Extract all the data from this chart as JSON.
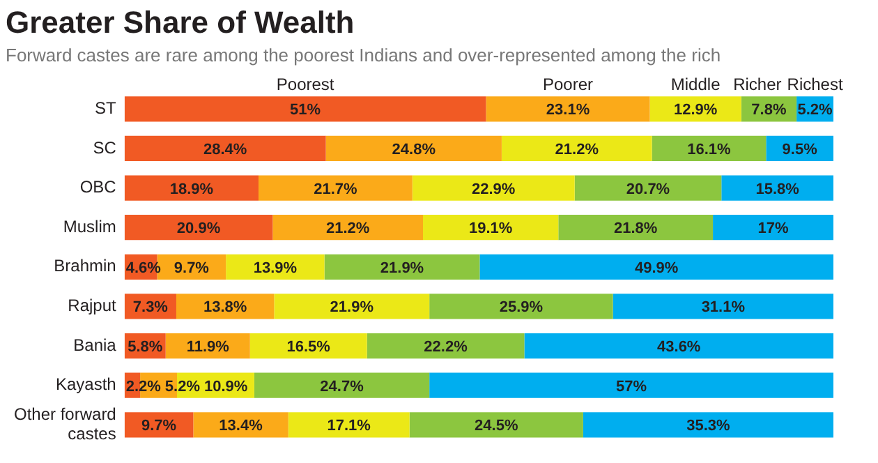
{
  "chart_data": {
    "type": "bar",
    "orientation": "horizontal",
    "stacked": true,
    "title": "Greater Share of Wealth",
    "subtitle": "Forward castes are rare among the poorest Indians and over-represented among the rich",
    "categories": [
      "ST",
      "SC",
      "OBC",
      "Muslim",
      "Brahmin",
      "Rajput",
      "Bania",
      "Kayasth",
      "Other forward castes"
    ],
    "xlim": [
      0,
      100
    ],
    "tick_labels": "y",
    "legend": "top",
    "series": [
      {
        "name": "Poorest",
        "color": "#f15a24",
        "values": [
          51,
          28.4,
          18.9,
          20.9,
          4.6,
          7.3,
          5.8,
          2.2,
          9.7
        ],
        "value_labels": [
          "51%",
          "28.4%",
          "18.9%",
          "20.9%",
          "4.6%",
          "7.3%",
          "5.8%",
          "2.2%",
          "9.7%"
        ]
      },
      {
        "name": "Poorer",
        "color": "#fbaa19",
        "values": [
          23.1,
          24.8,
          21.7,
          21.2,
          9.7,
          13.8,
          11.9,
          5.2,
          13.4
        ],
        "value_labels": [
          "23.1%",
          "24.8%",
          "21.7%",
          "21.2%",
          "9.7%",
          "13.8%",
          "11.9%",
          "5.2%",
          "13.4%"
        ]
      },
      {
        "name": "Middle",
        "color": "#ebe817",
        "values": [
          12.9,
          21.2,
          22.9,
          19.1,
          13.9,
          21.9,
          16.5,
          10.9,
          17.1
        ],
        "value_labels": [
          "12.9%",
          "21.2%",
          "22.9%",
          "19.1%",
          "13.9%",
          "21.9%",
          "16.5%",
          "10.9%",
          "17.1%"
        ]
      },
      {
        "name": "Richer",
        "color": "#8cc63f",
        "values": [
          7.8,
          16.1,
          20.7,
          21.8,
          21.9,
          25.9,
          22.2,
          24.7,
          24.5
        ],
        "value_labels": [
          "7.8%",
          "16.1%",
          "20.7%",
          "21.8%",
          "21.9%",
          "25.9%",
          "22.2%",
          "24.7%",
          "24.5%"
        ]
      },
      {
        "name": "Richest",
        "color": "#00aeef",
        "values": [
          5.2,
          9.5,
          15.8,
          17,
          49.9,
          31.1,
          43.6,
          57,
          35.3
        ],
        "value_labels": [
          "5.2%",
          "9.5%",
          "15.8%",
          "17%",
          "49.9%",
          "31.1%",
          "43.6%",
          "57%",
          "35.3%"
        ]
      }
    ]
  }
}
